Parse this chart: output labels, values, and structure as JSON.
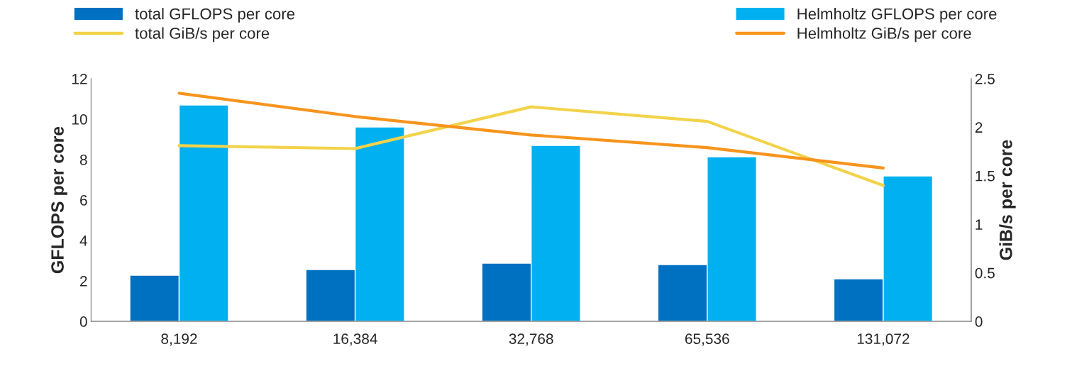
{
  "chart_data": {
    "type": "bar",
    "categories": [
      "8,192",
      "16,384",
      "32,768",
      "65,536",
      "131,072"
    ],
    "ylabel": "GFLOPS per core",
    "y2label": "GiB/s per core",
    "ylim": [
      0,
      12
    ],
    "yticks": [
      0,
      2,
      4,
      6,
      8,
      10,
      12
    ],
    "y2lim": [
      0,
      2.5
    ],
    "y2ticks": [
      0,
      0.5,
      1,
      1.5,
      2,
      2.5
    ],
    "legend": "top",
    "grid": false,
    "series": [
      {
        "name": "total GFLOPS per core",
        "color": "#0070c0",
        "values": [
          2.28,
          2.56,
          2.88,
          2.81,
          2.1
        ]
      },
      {
        "name": "Helmholtz GFLOPS per core",
        "color": "#00b0f0",
        "values": [
          10.7,
          9.61,
          8.7,
          8.14,
          7.19
        ]
      },
      {
        "name": "total GiB/s per core",
        "type": "line",
        "axis": "y2",
        "color": "#f2d34a",
        "values": [
          1.81,
          1.78,
          2.21,
          2.06,
          1.4
        ]
      },
      {
        "name": "Helmholtz GiB/s per core",
        "type": "line",
        "axis": "y2",
        "color": "#f7941d",
        "values": [
          2.35,
          2.11,
          1.92,
          1.79,
          1.58
        ]
      }
    ]
  }
}
